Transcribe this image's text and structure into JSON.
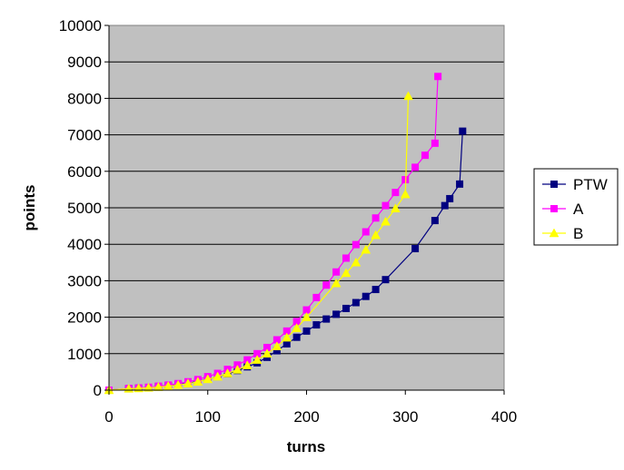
{
  "chart_data": {
    "type": "line",
    "title": "",
    "xlabel": "turns",
    "ylabel": "points",
    "xlim": [
      0,
      400
    ],
    "ylim": [
      0,
      10000
    ],
    "x_ticks": [
      0,
      100,
      200,
      300,
      400
    ],
    "y_ticks": [
      0,
      1000,
      2000,
      3000,
      4000,
      5000,
      6000,
      7000,
      8000,
      9000,
      10000
    ],
    "grid": "horizontal",
    "plot_background": "#c0c0c0",
    "legend_position": "right",
    "series": [
      {
        "name": "PTW",
        "color": "#000080",
        "marker": "square",
        "points": [
          [
            0,
            0
          ],
          [
            20,
            40
          ],
          [
            30,
            55
          ],
          [
            40,
            70
          ],
          [
            50,
            90
          ],
          [
            60,
            120
          ],
          [
            70,
            150
          ],
          [
            80,
            190
          ],
          [
            90,
            240
          ],
          [
            100,
            300
          ],
          [
            110,
            370
          ],
          [
            120,
            450
          ],
          [
            130,
            540
          ],
          [
            140,
            640
          ],
          [
            150,
            750
          ],
          [
            160,
            900
          ],
          [
            170,
            1080
          ],
          [
            180,
            1270
          ],
          [
            190,
            1450
          ],
          [
            200,
            1620
          ],
          [
            210,
            1790
          ],
          [
            220,
            1950
          ],
          [
            230,
            2080
          ],
          [
            240,
            2240
          ],
          [
            250,
            2400
          ],
          [
            260,
            2570
          ],
          [
            270,
            2760
          ],
          [
            280,
            3030
          ],
          [
            310,
            3880
          ],
          [
            330,
            4650
          ],
          [
            340,
            5060
          ],
          [
            345,
            5250
          ],
          [
            355,
            5650
          ],
          [
            358,
            7100
          ]
        ]
      },
      {
        "name": "A",
        "color": "#ff00ff",
        "marker": "square",
        "points": [
          [
            0,
            0
          ],
          [
            20,
            45
          ],
          [
            30,
            60
          ],
          [
            40,
            80
          ],
          [
            50,
            110
          ],
          [
            60,
            140
          ],
          [
            70,
            180
          ],
          [
            80,
            230
          ],
          [
            90,
            290
          ],
          [
            100,
            370
          ],
          [
            110,
            460
          ],
          [
            120,
            570
          ],
          [
            130,
            690
          ],
          [
            140,
            830
          ],
          [
            150,
            1000
          ],
          [
            160,
            1170
          ],
          [
            170,
            1380
          ],
          [
            180,
            1620
          ],
          [
            190,
            1880
          ],
          [
            200,
            2200
          ],
          [
            210,
            2540
          ],
          [
            220,
            2880
          ],
          [
            230,
            3240
          ],
          [
            240,
            3620
          ],
          [
            250,
            3990
          ],
          [
            260,
            4340
          ],
          [
            270,
            4720
          ],
          [
            280,
            5060
          ],
          [
            290,
            5420
          ],
          [
            300,
            5770
          ],
          [
            310,
            6110
          ],
          [
            320,
            6440
          ],
          [
            330,
            6770
          ],
          [
            333,
            8600
          ]
        ]
      },
      {
        "name": "B",
        "color": "#ffff00",
        "marker": "triangle",
        "points": [
          [
            0,
            0
          ],
          [
            20,
            40
          ],
          [
            30,
            50
          ],
          [
            40,
            65
          ],
          [
            50,
            85
          ],
          [
            60,
            110
          ],
          [
            70,
            140
          ],
          [
            80,
            180
          ],
          [
            90,
            230
          ],
          [
            100,
            300
          ],
          [
            110,
            370
          ],
          [
            120,
            460
          ],
          [
            130,
            560
          ],
          [
            140,
            680
          ],
          [
            150,
            830
          ],
          [
            160,
            1000
          ],
          [
            170,
            1200
          ],
          [
            180,
            1440
          ],
          [
            190,
            1700
          ],
          [
            200,
            2000
          ],
          [
            230,
            2930
          ],
          [
            240,
            3210
          ],
          [
            250,
            3500
          ],
          [
            260,
            3850
          ],
          [
            270,
            4250
          ],
          [
            280,
            4620
          ],
          [
            290,
            4980
          ],
          [
            300,
            5370
          ],
          [
            303,
            8060
          ]
        ]
      }
    ]
  }
}
